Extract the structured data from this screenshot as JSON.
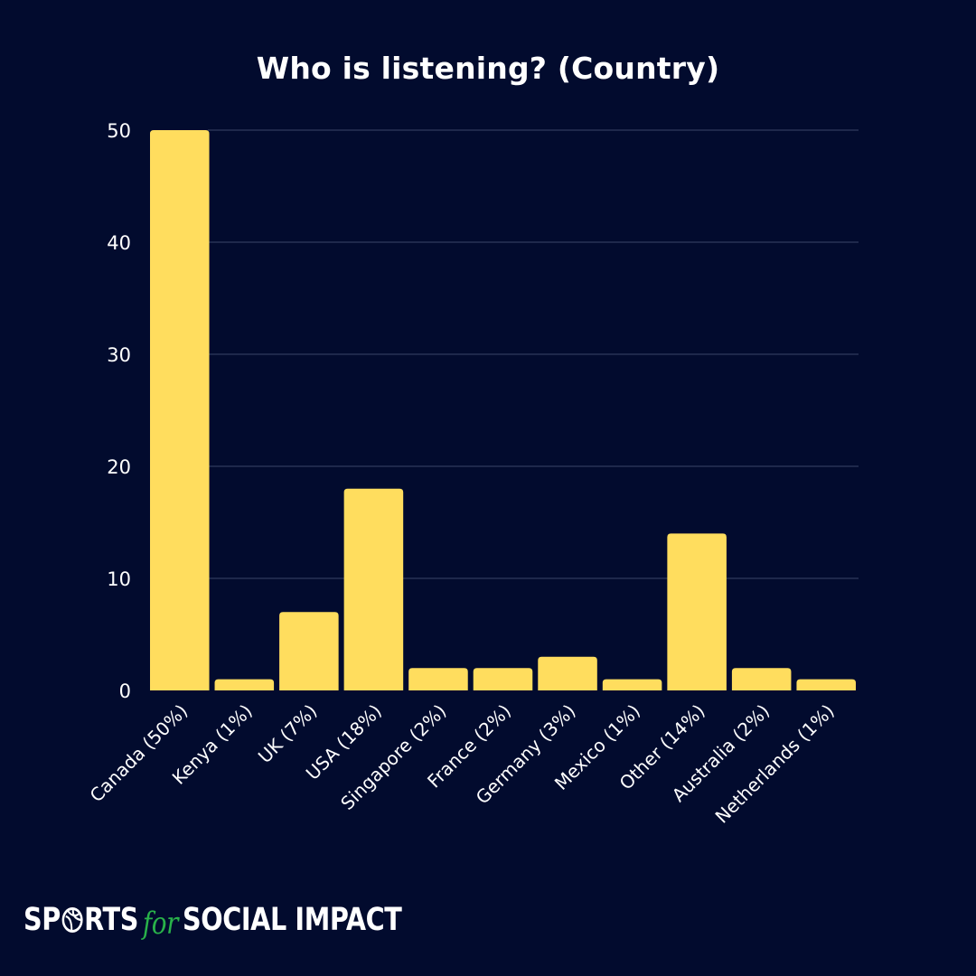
{
  "chart_data": {
    "type": "bar",
    "title": "Who is listening? (Country)",
    "xlabel": "",
    "ylabel": "",
    "categories": [
      "Canada (50%)",
      "Kenya (1%)",
      "UK (7%)",
      "USA (18%)",
      "Singapore (2%)",
      "France (2%)",
      "Germany (3%)",
      "Mexico (1%)",
      "Other (14%)",
      "Australia (2%)",
      "Netherlands (1%)"
    ],
    "values": [
      50,
      1,
      7,
      18,
      2,
      2,
      3,
      1,
      14,
      2,
      1
    ],
    "ylim": [
      0,
      50
    ],
    "yticks": [
      0,
      10,
      20,
      30,
      40,
      50
    ],
    "grid": true,
    "legend": "none",
    "bar_color": "#ffdd5e",
    "gridline_color": "#3a4468"
  },
  "background_color": "#020b2e",
  "logo": {
    "part1": "SP",
    "part2": "RTS",
    "for": "for",
    "part3": "SOCIAL IMPACT",
    "ball_icon": "soccer-ball-icon",
    "accent_color": "#29b24a"
  }
}
